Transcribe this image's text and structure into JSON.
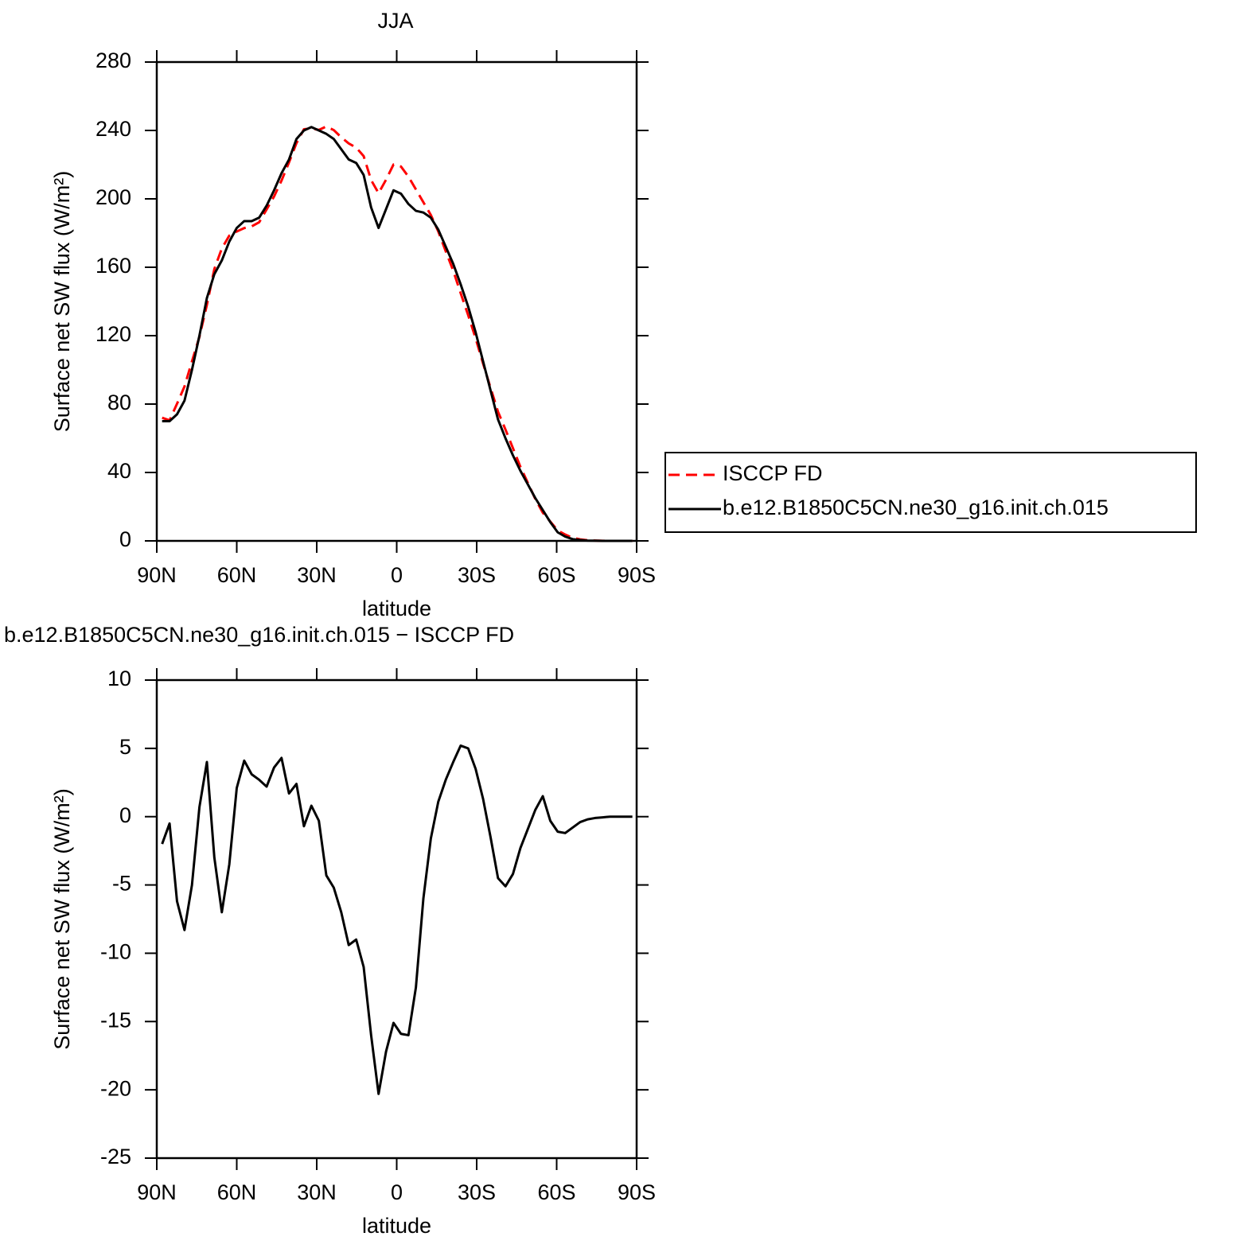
{
  "chart_data": [
    {
      "type": "line",
      "title": "JJA",
      "xlabel": "latitude",
      "ylabel": "Surface net SW flux (W/m²)",
      "x": [
        88.0,
        85.2,
        82.4,
        79.6,
        76.8,
        74.0,
        71.2,
        68.4,
        65.6,
        62.8,
        60.0,
        57.2,
        54.4,
        51.6,
        48.8,
        46.0,
        43.2,
        40.4,
        37.6,
        34.8,
        32.0,
        29.2,
        26.4,
        23.6,
        20.8,
        18.0,
        15.2,
        12.4,
        9.6,
        6.8,
        4.0,
        1.2,
        -1.6,
        -4.4,
        -7.2,
        -10.0,
        -12.8,
        -15.6,
        -18.4,
        -21.2,
        -24.0,
        -26.8,
        -29.6,
        -32.4,
        -35.2,
        -38.0,
        -40.8,
        -43.6,
        -46.4,
        -49.2,
        -52.0,
        -54.8,
        -57.6,
        -60.4,
        -63.2,
        -66.0,
        -68.8,
        -71.6,
        -74.4,
        -77.2,
        -80.0,
        -82.8,
        -85.6,
        -88.4
      ],
      "series": [
        {
          "name": "ISCCP FD",
          "color": "#ff0000",
          "dashed": true,
          "values": [
            72,
            70.5,
            80.2,
            90.3,
            105,
            119.3,
            138,
            159,
            171,
            178.5,
            180.9,
            182.9,
            183.9,
            186.3,
            193.8,
            201.4,
            210.7,
            221.3,
            232.6,
            240.7,
            241.2,
            240.3,
            242.3,
            240.2,
            236,
            232.4,
            230,
            225,
            211,
            203.3,
            211.2,
            220.1,
            218.9,
            213,
            205.5,
            198,
            190.6,
            180.9,
            169.3,
            158,
            144.8,
            132,
            118.5,
            103.7,
            89.5,
            75.5,
            65.1,
            54.2,
            43.3,
            33.9,
            24.5,
            16.5,
            11.3,
            6.1,
            3.7,
            1.8,
            0.9,
            0.4,
            0.2,
            0.05,
            0,
            0,
            0,
            0
          ]
        },
        {
          "name": "b.e12.B1850C5CN.ne30_g16.init.ch.015",
          "color": "#000000",
          "dashed": false,
          "values": [
            70,
            70,
            74,
            82,
            100,
            120,
            142,
            156,
            164,
            175,
            183,
            187,
            187,
            189,
            196,
            205,
            215,
            223,
            235,
            240,
            242,
            240,
            238,
            235,
            229,
            223,
            221,
            214,
            195,
            183,
            194,
            205,
            203,
            197,
            193,
            192,
            189,
            182,
            172,
            162,
            150,
            137,
            122,
            105,
            88,
            71,
            60,
            50,
            41,
            33,
            25,
            18,
            11,
            5,
            2.5,
            1,
            0.5,
            0.2,
            0.1,
            0,
            0,
            0,
            0,
            0
          ]
        }
      ],
      "xlim": [
        90,
        -90
      ],
      "xticks": [
        {
          "value": 90,
          "label": "90N"
        },
        {
          "value": 60,
          "label": "60N"
        },
        {
          "value": 30,
          "label": "30N"
        },
        0,
        {
          "value": -30,
          "label": "30S"
        },
        {
          "value": -60,
          "label": "60S"
        },
        {
          "value": -90,
          "label": "90S"
        }
      ],
      "ylim": [
        0,
        280
      ],
      "yticks": [
        0,
        40,
        80,
        120,
        160,
        200,
        240,
        280
      ],
      "legend": "right"
    },
    {
      "type": "line",
      "title": "b.e12.B1850C5CN.ne30_g16.init.ch.015 − ISCCP FD",
      "xlabel": "latitude",
      "ylabel": "Surface net SW flux (W/m²)",
      "x": [
        88.0,
        85.2,
        82.4,
        79.6,
        76.8,
        74.0,
        71.2,
        68.4,
        65.6,
        62.8,
        60.0,
        57.2,
        54.4,
        51.6,
        48.8,
        46.0,
        43.2,
        40.4,
        37.6,
        34.8,
        32.0,
        29.2,
        26.4,
        23.6,
        20.8,
        18.0,
        15.2,
        12.4,
        9.6,
        6.8,
        4.0,
        1.2,
        -1.6,
        -4.4,
        -7.2,
        -10.0,
        -12.8,
        -15.6,
        -18.4,
        -21.2,
        -24.0,
        -26.8,
        -29.6,
        -32.4,
        -35.2,
        -38.0,
        -40.8,
        -43.6,
        -46.4,
        -49.2,
        -52.0,
        -54.8,
        -57.6,
        -60.4,
        -63.2,
        -66.0,
        -68.8,
        -71.6,
        -74.4,
        -77.2,
        -80.0,
        -82.8,
        -85.6,
        -88.4
      ],
      "series": [
        {
          "color": "#000000",
          "dashed": false,
          "values": [
            -2,
            -0.5,
            -6.2,
            -8.3,
            -5,
            0.7,
            4,
            -3,
            -7,
            -3.5,
            2.1,
            4.1,
            3.1,
            2.7,
            2.2,
            3.6,
            4.3,
            1.7,
            2.4,
            -0.7,
            0.8,
            -0.3,
            -4.3,
            -5.2,
            -7,
            -9.4,
            -9,
            -11,
            -16,
            -20.3,
            -17.2,
            -15.1,
            -15.9,
            -16,
            -12.5,
            -6,
            -1.6,
            1.1,
            2.7,
            4,
            5.2,
            5,
            3.5,
            1.3,
            -1.5,
            -4.5,
            -5.1,
            -4.2,
            -2.3,
            -0.9,
            0.5,
            1.5,
            -0.3,
            -1.1,
            -1.2,
            -0.8,
            -0.4,
            -0.2,
            -0.1,
            -0.05,
            0,
            0,
            0,
            0
          ]
        }
      ],
      "xlim": [
        90,
        -90
      ],
      "xticks": [
        {
          "value": 90,
          "label": "90N"
        },
        {
          "value": 60,
          "label": "60N"
        },
        {
          "value": 30,
          "label": "30N"
        },
        0,
        {
          "value": -30,
          "label": "30S"
        },
        {
          "value": -60,
          "label": "60S"
        },
        {
          "value": -90,
          "label": "90S"
        }
      ],
      "ylim": [
        -25,
        10
      ],
      "yticks": [
        -25,
        -20,
        -15,
        -10,
        -5,
        0,
        5,
        10
      ]
    }
  ]
}
